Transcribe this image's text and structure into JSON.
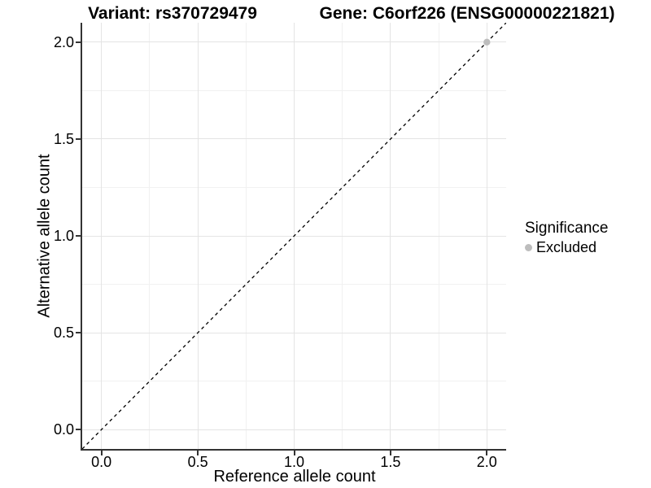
{
  "colors": {
    "background": "#ffffff",
    "axis_line": "#333333",
    "grid_major": "#e4e4e4",
    "grid_minor": "#f1f1f1",
    "text": "#000000",
    "excluded_point": "#bdbdbd",
    "dashed_line": "#000000"
  },
  "chart_data": {
    "type": "scatter",
    "titles": {
      "left": "Variant: rs370729479",
      "right": "Gene: C6orf226 (ENSG00000221821)"
    },
    "xlabel": "Reference allele count",
    "ylabel": "Alternative allele count",
    "xlim": [
      -0.1,
      2.1
    ],
    "ylim": [
      -0.1,
      2.1
    ],
    "x_ticks": {
      "values": [
        0,
        0.5,
        1,
        1.5,
        2
      ],
      "labels": [
        "0.0",
        "0.5",
        "1.0",
        "1.5",
        "2.0"
      ]
    },
    "y_ticks": {
      "values": [
        0,
        0.5,
        1,
        1.5,
        2
      ],
      "labels": [
        "0.0",
        "0.5",
        "1.0",
        "1.5",
        "2.0"
      ]
    },
    "x_minor_ticks": [
      0.25,
      0.75,
      1.25,
      1.75
    ],
    "y_minor_ticks": [
      0.25,
      0.75,
      1.25,
      1.75
    ],
    "grid": {
      "major": true,
      "minor": true
    },
    "reference_line": {
      "style": "dashed",
      "color": "#000000",
      "from": [
        -0.1,
        -0.1
      ],
      "to": [
        2.1,
        2.1
      ]
    },
    "series": [
      {
        "name": "Excluded",
        "color": "#bdbdbd",
        "marker": "circle",
        "points": [
          {
            "x": 2.0,
            "y": 2.0
          }
        ]
      }
    ],
    "legend": {
      "title": "Significance",
      "position": "right",
      "entries": [
        {
          "label": "Excluded",
          "color": "#bdbdbd",
          "marker": "circle"
        }
      ]
    }
  }
}
